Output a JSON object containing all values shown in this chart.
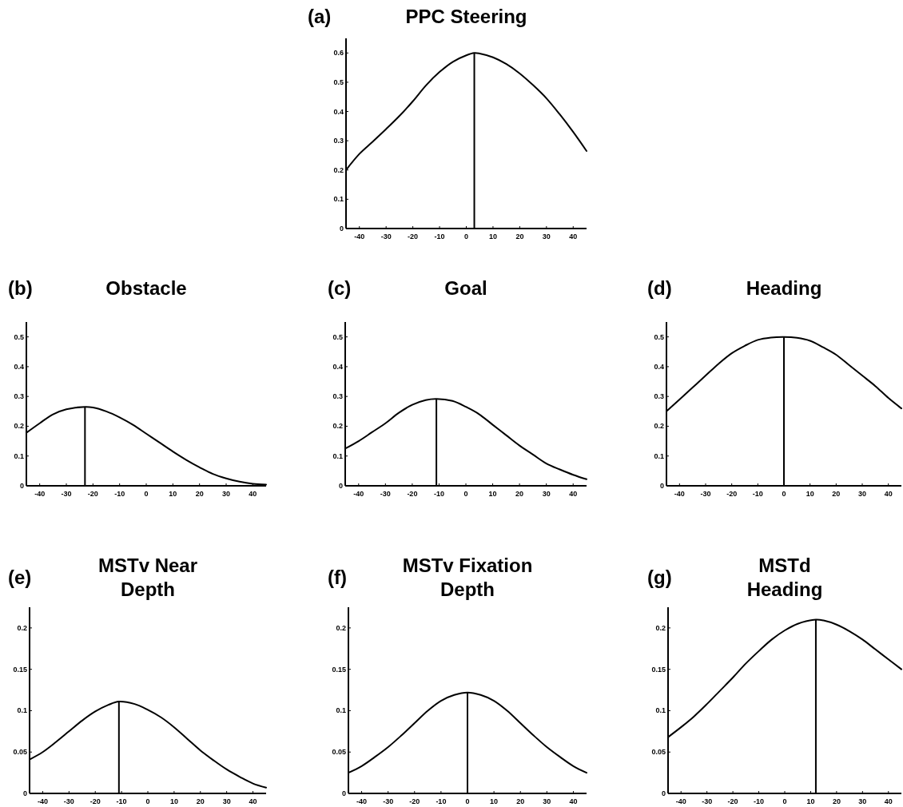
{
  "chart_data": [
    {
      "type": "line",
      "title": "PPC Steering",
      "annotations": [
        "(a)"
      ],
      "xlim": [
        -45,
        45
      ],
      "xticks": [
        -40,
        -30,
        -20,
        -10,
        0,
        10,
        20,
        30,
        40
      ],
      "ylim": [
        0,
        0.65
      ],
      "yticks": [
        0,
        0.1,
        0.2,
        0.3,
        0.4,
        0.5,
        0.6
      ],
      "grid": false,
      "marker": "none",
      "line_style": "solid",
      "series": [
        {
          "color": "#000000",
          "x": [
            -45,
            -40,
            -35,
            -30,
            -25,
            -20,
            -15,
            -10,
            -5,
            0,
            3,
            5,
            10,
            15,
            20,
            25,
            30,
            35,
            40,
            45
          ],
          "values": [
            0.2,
            0.255,
            0.297,
            0.34,
            0.385,
            0.435,
            0.49,
            0.535,
            0.57,
            0.592,
            0.6,
            0.598,
            0.585,
            0.562,
            0.53,
            0.49,
            0.445,
            0.39,
            0.33,
            0.265
          ]
        }
      ],
      "ref_lines": [
        {
          "axis": "x",
          "value": 3,
          "color": "#000000"
        }
      ]
    },
    {
      "type": "line",
      "title": "Obstacle",
      "annotations": [
        "(b)"
      ],
      "xlim": [
        -45,
        45
      ],
      "xticks": [
        -40,
        -30,
        -20,
        -10,
        0,
        10,
        20,
        30,
        40
      ],
      "ylim": [
        0,
        0.55
      ],
      "yticks": [
        0,
        0.1,
        0.2,
        0.3,
        0.4,
        0.5
      ],
      "grid": false,
      "marker": "none",
      "line_style": "solid",
      "series": [
        {
          "color": "#000000",
          "x": [
            -45,
            -40,
            -35,
            -30,
            -23,
            -20,
            -15,
            -10,
            -5,
            0,
            5,
            10,
            15,
            20,
            25,
            30,
            35,
            40,
            45
          ],
          "values": [
            0.178,
            0.21,
            0.24,
            0.257,
            0.265,
            0.263,
            0.25,
            0.23,
            0.205,
            0.175,
            0.145,
            0.115,
            0.087,
            0.062,
            0.04,
            0.025,
            0.014,
            0.007,
            0.004
          ]
        }
      ],
      "ref_lines": [
        {
          "axis": "x",
          "value": -23,
          "color": "#000000"
        }
      ]
    },
    {
      "type": "line",
      "title": "Goal",
      "annotations": [
        "(c)"
      ],
      "xlim": [
        -45,
        45
      ],
      "xticks": [
        -40,
        -30,
        -20,
        -10,
        0,
        10,
        20,
        30,
        40
      ],
      "ylim": [
        0,
        0.55
      ],
      "yticks": [
        0,
        0.1,
        0.2,
        0.3,
        0.4,
        0.5
      ],
      "grid": false,
      "marker": "none",
      "line_style": "solid",
      "series": [
        {
          "color": "#000000",
          "x": [
            -45,
            -40,
            -35,
            -30,
            -25,
            -20,
            -15,
            -11,
            -5,
            0,
            5,
            10,
            15,
            20,
            25,
            30,
            35,
            40,
            45
          ],
          "values": [
            0.125,
            0.15,
            0.18,
            0.21,
            0.245,
            0.272,
            0.288,
            0.292,
            0.285,
            0.265,
            0.24,
            0.205,
            0.17,
            0.135,
            0.105,
            0.075,
            0.055,
            0.037,
            0.022
          ]
        }
      ],
      "ref_lines": [
        {
          "axis": "x",
          "value": -11,
          "color": "#000000"
        }
      ]
    },
    {
      "type": "line",
      "title": "Heading",
      "annotations": [
        "(d)"
      ],
      "xlim": [
        -45,
        45
      ],
      "xticks": [
        -40,
        -30,
        -20,
        -10,
        0,
        10,
        20,
        30,
        40
      ],
      "ylim": [
        0,
        0.55
      ],
      "yticks": [
        0,
        0.1,
        0.2,
        0.3,
        0.4,
        0.5
      ],
      "grid": false,
      "marker": "none",
      "line_style": "solid",
      "series": [
        {
          "color": "#000000",
          "x": [
            -45,
            -40,
            -35,
            -30,
            -25,
            -20,
            -15,
            -10,
            -5,
            0,
            5,
            10,
            15,
            20,
            25,
            30,
            35,
            40,
            45
          ],
          "values": [
            0.25,
            0.29,
            0.33,
            0.37,
            0.41,
            0.445,
            0.47,
            0.49,
            0.498,
            0.5,
            0.497,
            0.487,
            0.465,
            0.44,
            0.405,
            0.37,
            0.335,
            0.295,
            0.26
          ]
        }
      ],
      "ref_lines": [
        {
          "axis": "x",
          "value": 0,
          "color": "#000000"
        }
      ]
    },
    {
      "type": "line",
      "title": "MSTv Near\nDepth",
      "annotations": [
        "(e)"
      ],
      "xlim": [
        -45,
        45
      ],
      "xticks": [
        -40,
        -30,
        -20,
        -10,
        0,
        10,
        20,
        30,
        40
      ],
      "ylim": [
        0,
        0.225
      ],
      "yticks": [
        0,
        0.05,
        0.1,
        0.15,
        0.2
      ],
      "grid": false,
      "marker": "none",
      "line_style": "solid",
      "series": [
        {
          "color": "#000000",
          "x": [
            -45,
            -40,
            -35,
            -30,
            -25,
            -20,
            -15,
            -11,
            -5,
            0,
            5,
            10,
            15,
            20,
            25,
            30,
            35,
            40,
            45
          ],
          "values": [
            0.041,
            0.05,
            0.062,
            0.075,
            0.088,
            0.099,
            0.107,
            0.111,
            0.108,
            0.101,
            0.092,
            0.08,
            0.066,
            0.052,
            0.04,
            0.029,
            0.02,
            0.012,
            0.007
          ]
        }
      ],
      "ref_lines": [
        {
          "axis": "x",
          "value": -11,
          "color": "#000000"
        }
      ]
    },
    {
      "type": "line",
      "title": "MSTv Fixation\nDepth",
      "annotations": [
        "(f)"
      ],
      "xlim": [
        -45,
        45
      ],
      "xticks": [
        -40,
        -30,
        -20,
        -10,
        0,
        10,
        20,
        30,
        40
      ],
      "ylim": [
        0,
        0.225
      ],
      "yticks": [
        0,
        0.05,
        0.1,
        0.15,
        0.2
      ],
      "grid": false,
      "marker": "none",
      "line_style": "solid",
      "series": [
        {
          "color": "#000000",
          "x": [
            -45,
            -40,
            -35,
            -30,
            -25,
            -20,
            -15,
            -10,
            -5,
            0,
            5,
            10,
            15,
            20,
            25,
            30,
            35,
            40,
            45
          ],
          "values": [
            0.025,
            0.033,
            0.044,
            0.056,
            0.07,
            0.085,
            0.1,
            0.112,
            0.119,
            0.122,
            0.119,
            0.112,
            0.1,
            0.085,
            0.07,
            0.056,
            0.044,
            0.033,
            0.025
          ]
        }
      ],
      "ref_lines": [
        {
          "axis": "x",
          "value": 0,
          "color": "#000000"
        }
      ]
    },
    {
      "type": "line",
      "title": "MSTd\nHeading",
      "annotations": [
        "(g)"
      ],
      "xlim": [
        -45,
        45
      ],
      "xticks": [
        -40,
        -30,
        -20,
        -10,
        0,
        10,
        20,
        30,
        40
      ],
      "ylim": [
        0,
        0.225
      ],
      "yticks": [
        0,
        0.05,
        0.1,
        0.15,
        0.2
      ],
      "grid": false,
      "marker": "none",
      "line_style": "solid",
      "series": [
        {
          "color": "#000000",
          "x": [
            -45,
            -40,
            -35,
            -30,
            -25,
            -20,
            -15,
            -10,
            -5,
            0,
            5,
            12,
            15,
            20,
            25,
            30,
            35,
            40,
            45
          ],
          "values": [
            0.068,
            0.08,
            0.093,
            0.108,
            0.124,
            0.14,
            0.157,
            0.172,
            0.186,
            0.197,
            0.205,
            0.21,
            0.209,
            0.204,
            0.196,
            0.186,
            0.174,
            0.162,
            0.15
          ]
        }
      ],
      "ref_lines": [
        {
          "axis": "x",
          "value": 12,
          "color": "#000000"
        }
      ]
    }
  ]
}
